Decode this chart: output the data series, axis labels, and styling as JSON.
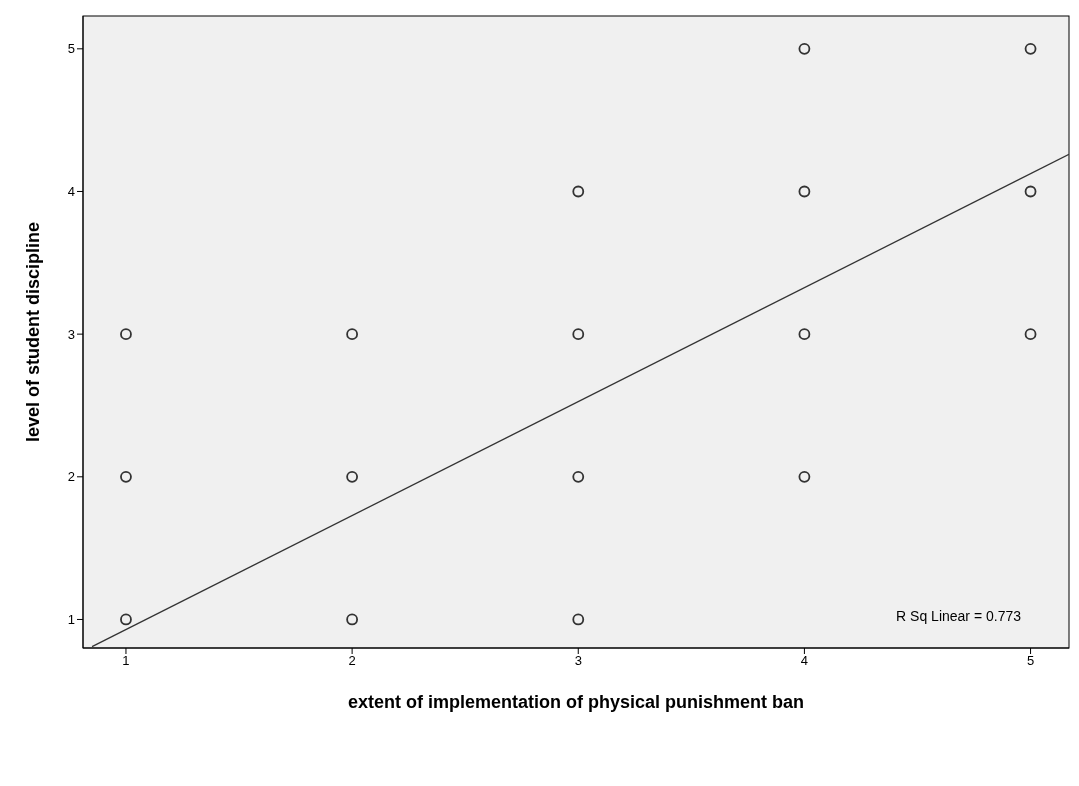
{
  "chart_data": {
    "type": "scatter",
    "xlabel": "extent of implementation of physical punishment ban",
    "ylabel": "level of student discipline",
    "xlim": [
      0.81,
      5.17
    ],
    "ylim": [
      0.8,
      5.23
    ],
    "xticks": [
      1,
      2,
      3,
      4,
      5
    ],
    "yticks": [
      1,
      2,
      3,
      4,
      5
    ],
    "grid": false,
    "marker": "circle",
    "series": [
      {
        "color": "#333333",
        "x": [
          1,
          1,
          1,
          2,
          2,
          2,
          3,
          3,
          3,
          3,
          4,
          4,
          4,
          4,
          5,
          5,
          5
        ],
        "values": [
          3,
          2,
          1,
          3,
          2,
          1,
          4,
          3,
          2,
          1,
          5,
          4,
          3,
          2,
          5,
          4,
          3
        ]
      },
      {
        "type": "line",
        "color": "#333333",
        "marker": "none",
        "x": [
          0.85,
          5.17
        ],
        "values": [
          0.81,
          4.26
        ]
      }
    ],
    "annotations": [
      "R Sq Linear = 0.773"
    ]
  }
}
